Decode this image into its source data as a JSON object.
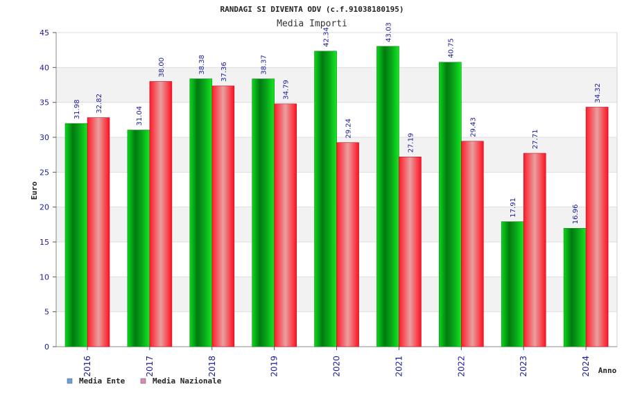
{
  "chart_data": {
    "type": "bar",
    "title": "RANDAGI SI DIVENTA ODV (c.f.91038180195)",
    "subtitle": "Media Importi",
    "xlabel": "Anno",
    "ylabel": "Euro",
    "ylim": [
      0,
      45
    ],
    "yticks": [
      0,
      5,
      10,
      15,
      20,
      25,
      30,
      35,
      40,
      45
    ],
    "grid": true,
    "legend_position": "bottom-left",
    "categories": [
      "2016",
      "2017",
      "2018",
      "2019",
      "2020",
      "2021",
      "2022",
      "2023",
      "2024"
    ],
    "series": [
      {
        "name": "Media Ente",
        "legend_color": "#6a9fe0",
        "bar_color": "#0ec81e",
        "values": [
          31.98,
          31.04,
          38.38,
          38.37,
          42.34,
          43.03,
          40.75,
          17.91,
          16.96
        ],
        "labels": [
          "31.98",
          "31.04",
          "38.38",
          "38.37",
          "42.34",
          "43.03",
          "40.75",
          "17.91",
          "16.96"
        ]
      },
      {
        "name": "Media Nazionale",
        "legend_color": "#d98ab8",
        "bar_color": "#f0303a",
        "values": [
          32.82,
          38.0,
          37.36,
          34.79,
          29.24,
          27.19,
          29.43,
          27.71,
          34.32
        ],
        "labels": [
          "32.82",
          "38.00",
          "37.36",
          "34.79",
          "29.24",
          "27.19",
          "29.43",
          "27.71",
          "34.32"
        ]
      }
    ]
  }
}
